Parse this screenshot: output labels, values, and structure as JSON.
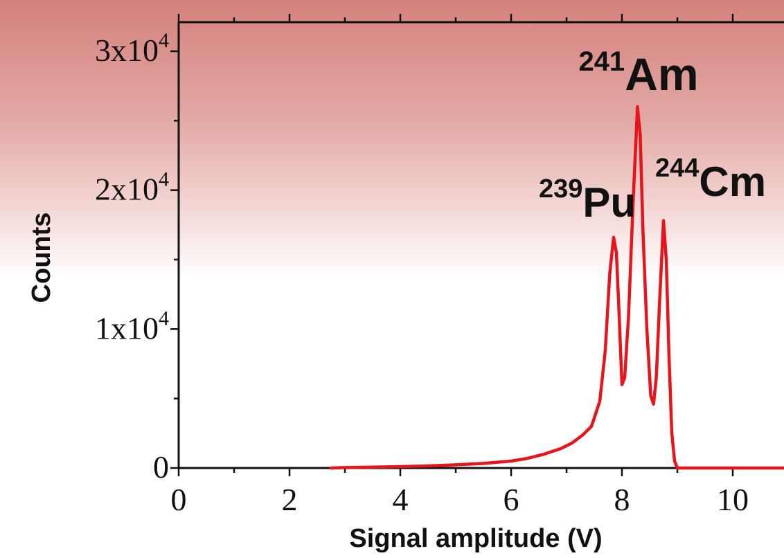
{
  "chart_data": {
    "type": "line",
    "title": "",
    "xlabel": "Signal amplitude (V)",
    "ylabel": "Counts",
    "xlim": [
      0,
      11
    ],
    "ylim": [
      0,
      30000
    ],
    "x_ticks": [
      0,
      2,
      4,
      6,
      8,
      10
    ],
    "x_tick_labels": [
      "0",
      "2",
      "4",
      "6",
      "8",
      "10"
    ],
    "y_ticks": [
      0,
      10000,
      20000,
      30000
    ],
    "y_tick_labels": [
      {
        "mantissa": "0",
        "exp": ""
      },
      {
        "mantissa": "1x10",
        "exp": "4"
      },
      {
        "mantissa": "2x10",
        "exp": "4"
      },
      {
        "mantissa": "3x10",
        "exp": "4"
      }
    ],
    "grid": false,
    "series": [
      {
        "color": "#e8141c",
        "x": [
          2.75,
          3.0,
          3.5,
          4.0,
          4.5,
          5.0,
          5.5,
          6.0,
          6.3,
          6.6,
          6.9,
          7.1,
          7.3,
          7.45,
          7.6,
          7.7,
          7.78,
          7.85,
          7.9,
          7.95,
          8.0,
          8.05,
          8.12,
          8.2,
          8.28,
          8.33,
          8.38,
          8.45,
          8.52,
          8.57,
          8.62,
          8.68,
          8.75,
          8.8,
          8.85,
          8.9,
          8.95,
          9.0,
          9.2,
          11.0
        ],
        "y": [
          0,
          30,
          60,
          100,
          150,
          230,
          330,
          500,
          700,
          1000,
          1400,
          1800,
          2400,
          3000,
          4800,
          8500,
          14000,
          16600,
          15500,
          11000,
          6000,
          6500,
          11000,
          19000,
          26000,
          24000,
          17000,
          10000,
          5200,
          4600,
          6500,
          12000,
          17800,
          15000,
          8000,
          2500,
          500,
          0,
          0,
          0
        ]
      }
    ],
    "annotations": [
      {
        "sup": "241",
        "text": "Am",
        "x": 8.3,
        "y": 26400
      },
      {
        "sup": "239",
        "text": "Pu",
        "x": 7.85,
        "y": 16600
      },
      {
        "sup": "244",
        "text": "Cm",
        "x": 8.75,
        "y": 17800
      }
    ]
  }
}
